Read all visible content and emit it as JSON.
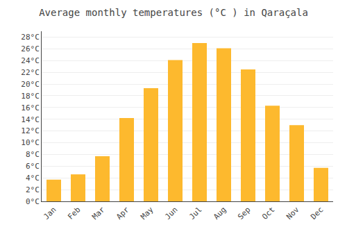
{
  "chart_data": {
    "type": "bar",
    "title": "Average monthly temperatures (°C ) in Qaraçala",
    "categories": [
      "Jan",
      "Feb",
      "Mar",
      "Apr",
      "May",
      "Jun",
      "Jul",
      "Aug",
      "Sep",
      "Oct",
      "Nov",
      "Dec"
    ],
    "values": [
      3.7,
      4.6,
      7.7,
      14.2,
      19.3,
      24.1,
      27.0,
      26.1,
      22.5,
      16.3,
      13.0,
      5.7
    ],
    "color": "#FDB92E",
    "ylim": [
      0,
      29
    ],
    "yticks": [
      {
        "value": 0,
        "label": "0°C"
      },
      {
        "value": 2,
        "label": "2°C"
      },
      {
        "value": 4,
        "label": "4°C"
      },
      {
        "value": 6,
        "label": "6°C"
      },
      {
        "value": 8,
        "label": "8°C"
      },
      {
        "value": 10,
        "label": "10°C"
      },
      {
        "value": 12,
        "label": "12°C"
      },
      {
        "value": 14,
        "label": "14°C"
      },
      {
        "value": 16,
        "label": "16°C"
      },
      {
        "value": 18,
        "label": "18°C"
      },
      {
        "value": 20,
        "label": "20°C"
      },
      {
        "value": 22,
        "label": "22°C"
      },
      {
        "value": 24,
        "label": "24°C"
      },
      {
        "value": 26,
        "label": "26°C"
      },
      {
        "value": 28,
        "label": "28°C"
      }
    ],
    "grid": true
  }
}
